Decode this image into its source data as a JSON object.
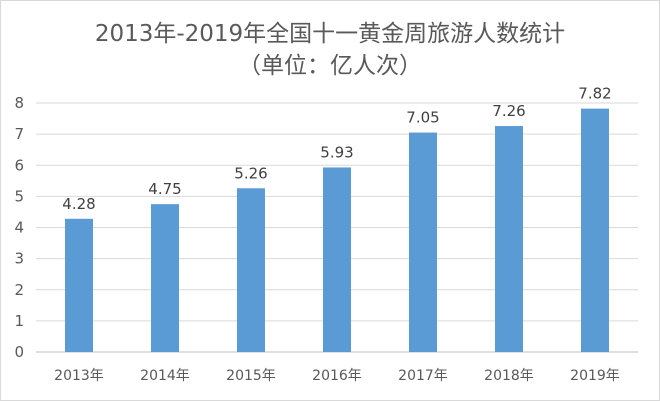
{
  "chart_data": {
    "type": "bar",
    "title": "2013年-2019年全国十一黄金周旅游人数统计",
    "subtitle": "（单位：亿人次）",
    "categories": [
      "2013年",
      "2014年",
      "2015年",
      "2016年",
      "2017年",
      "2018年",
      "2019年"
    ],
    "values": [
      4.28,
      4.75,
      5.26,
      5.93,
      7.05,
      7.26,
      7.82
    ],
    "data_labels": [
      "4.28",
      "4.75",
      "5.26",
      "5.93",
      "7.05",
      "7.26",
      "7.82"
    ],
    "yticks": [
      "0",
      "1",
      "2",
      "3",
      "4",
      "5",
      "6",
      "7",
      "8"
    ],
    "ylim": [
      0,
      8
    ],
    "grid": true,
    "legend": "none",
    "bar_color": "#5b9bd5",
    "grid_color": "#d9d9d9"
  }
}
